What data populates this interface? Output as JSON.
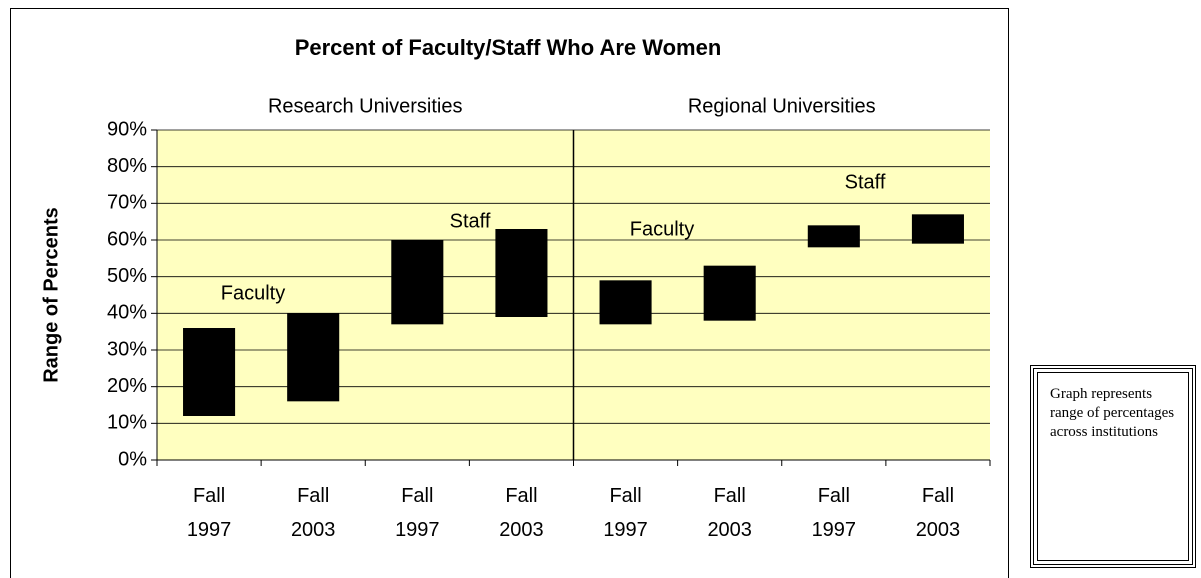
{
  "chart_data": {
    "type": "range-bar",
    "title": "Percent of Faculty/Staff Who Are Women",
    "y_label": "Range of Percents",
    "groups": [
      "Research Universities",
      "Regional Universities"
    ],
    "categories": [
      "Fall 1997",
      "Fall 2003",
      "Fall 1997",
      "Fall 2003",
      "Fall 1997",
      "Fall 2003",
      "Fall 1997",
      "Fall 2003"
    ],
    "ranges": [
      [
        12,
        36
      ],
      [
        16,
        40
      ],
      [
        37,
        60
      ],
      [
        39,
        63
      ],
      [
        37,
        49
      ],
      [
        38,
        53
      ],
      [
        58,
        64
      ],
      [
        59,
        67
      ]
    ],
    "annotations": [
      "Faculty",
      "Staff",
      "Faculty",
      "Staff"
    ],
    "note": "Graph represents range of percentages across institutions",
    "color": "#000000",
    "plot_background": "#ffffc0",
    "ylim": [
      0,
      90
    ],
    "yticks": [
      {
        "value": 0,
        "label": "0%"
      },
      {
        "value": 10,
        "label": "10%"
      },
      {
        "value": 20,
        "label": "20%"
      },
      {
        "value": 30,
        "label": "30%"
      },
      {
        "value": 40,
        "label": "40%"
      },
      {
        "value": 50,
        "label": "50%"
      },
      {
        "value": 60,
        "label": "60%"
      },
      {
        "value": 70,
        "label": "70%"
      },
      {
        "value": 80,
        "label": "80%"
      },
      {
        "value": 90,
        "label": "90%"
      }
    ],
    "grid": true
  }
}
